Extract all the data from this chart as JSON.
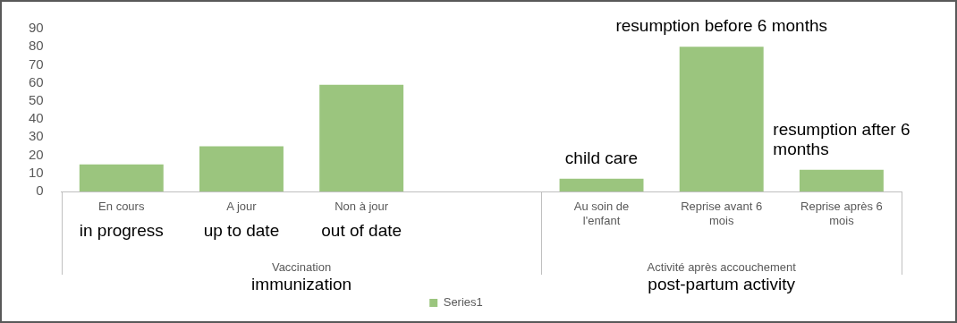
{
  "chart_data": {
    "type": "bar",
    "categories": [
      "En cours",
      "A jour",
      "Non à jour",
      null,
      "Au soin de l'enfant",
      "Reprise avant 6 mois",
      "Reprise après 6 mois"
    ],
    "series": [
      {
        "name": "Series1",
        "color": "#9bc57e",
        "values": [
          15,
          25,
          59,
          null,
          7,
          80,
          12
        ]
      }
    ],
    "ylim": [
      0,
      90
    ],
    "yticks": [
      0,
      10,
      20,
      30,
      40,
      50,
      60,
      70,
      80,
      90
    ],
    "grid": false,
    "legend": "bottom",
    "annotations": [
      "in progress",
      "up to date",
      "out of date",
      {
        "text": "child care",
        "x": "Au soin de l'enfant",
        "y": 7
      },
      {
        "text": "resumption before 6 months",
        "x": "Reprise avant 6 mois",
        "y": 80
      },
      {
        "text": "resumption after 6 months",
        "x": "Reprise après 6 mois",
        "y": 12
      },
      "Vaccination",
      "immunization",
      "Activité après accouchement",
      "post-partum activity"
    ]
  }
}
